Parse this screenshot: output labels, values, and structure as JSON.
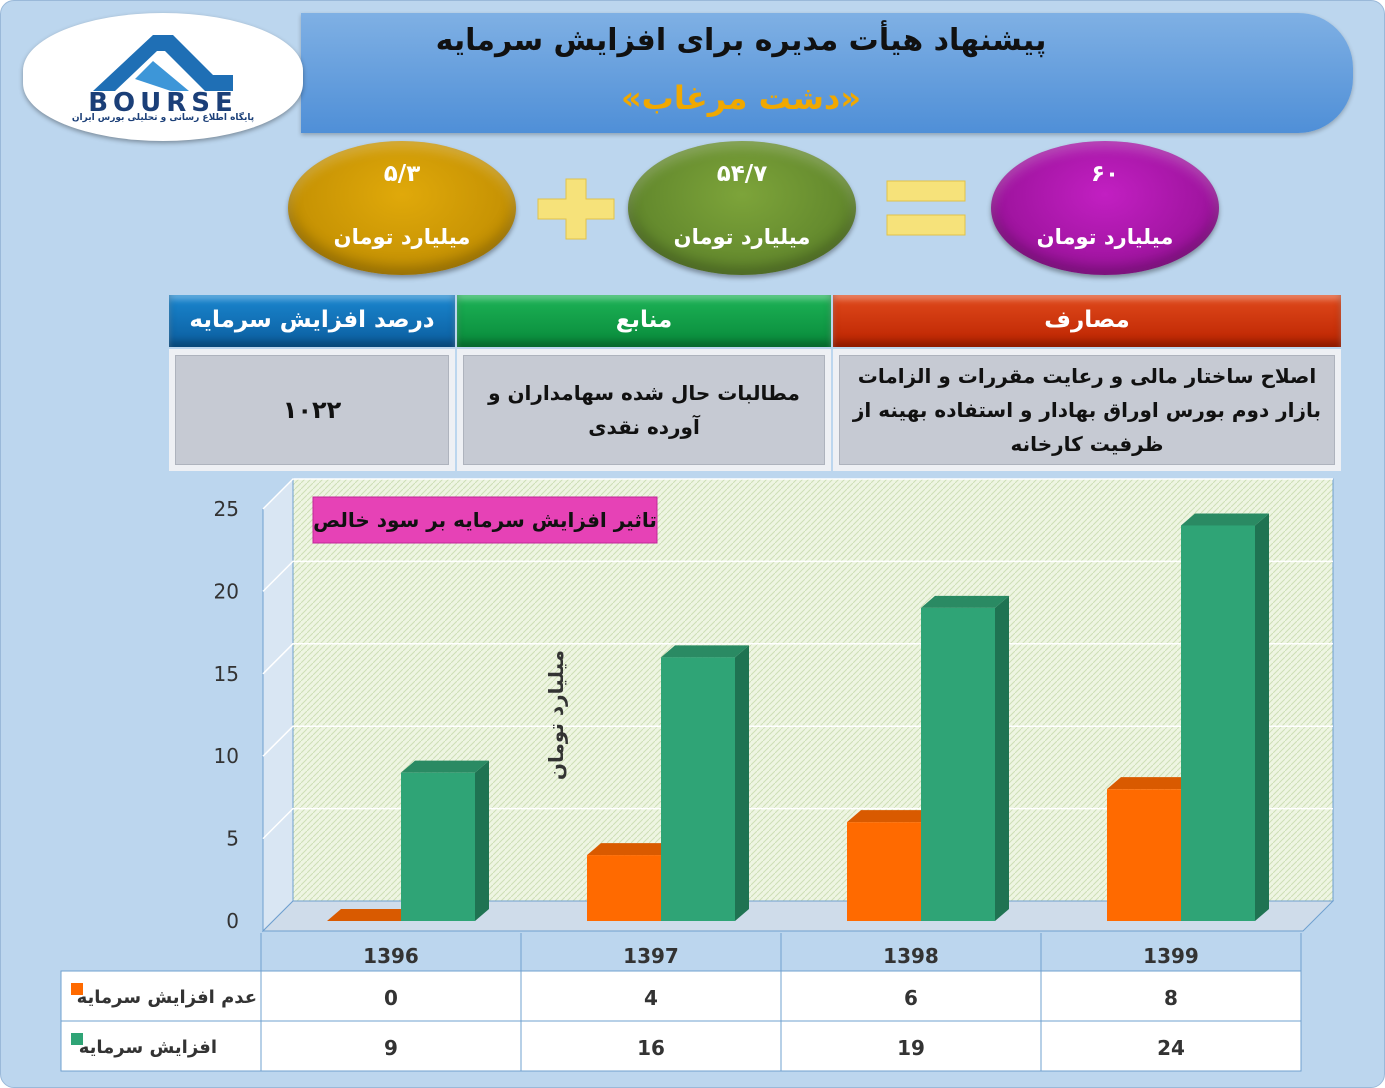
{
  "header": {
    "title": "پیشنهاد هیأت مدیره برای افزایش سرمایه",
    "subtitle": "«دشت مرغاب»",
    "logo_text": "BOURSE",
    "logo_tagline": "پایگاه اطلاع رسانی و تحلیلی بورس ایران"
  },
  "equation": {
    "total_value": "۶۰",
    "total_unit": "میلیارد تومان",
    "receivables_value": "۵۴/۷",
    "receivables_unit": "میلیارد تومان",
    "cash_value": "۵/۳",
    "cash_unit": "میلیارد تومان"
  },
  "info_table": {
    "headers": [
      "مصارف",
      "منابع",
      "درصد افزایش سرمایه"
    ],
    "uses": "اصلاح ساختار مالی و رعایت مقررات و الزامات بازار دوم بورس اوراق بهادار و استفاده بهینه از ظرفیت کارخانه",
    "sources": "مطالبات حال شده سهامداران و آورده نقدی",
    "percent": "۱۰۲۲"
  },
  "colors": {
    "uses_header": "#cc2a00",
    "sources_header": "#0e9a3f",
    "percent_header": "#0e6fb3",
    "series_no_increase": "#ff6a00",
    "series_increase": "#2fa476"
  },
  "chart_data": {
    "type": "bar",
    "title": "تاثیر افزایش سرمایه بر سود خالص",
    "ylabel": "میلیارد تومان",
    "xlabel": "",
    "ylim": [
      0,
      25
    ],
    "yticks": [
      "0",
      "5",
      "10",
      "15",
      "20",
      "25"
    ],
    "categories": [
      "1396",
      "1397",
      "1398",
      "1399"
    ],
    "series": [
      {
        "name": "عدم افزایش سرمایه",
        "values": [
          0,
          4,
          6,
          8
        ]
      },
      {
        "name": "افزایش سرمایه",
        "values": [
          9,
          16,
          19,
          24
        ]
      }
    ],
    "grid": true,
    "legend": "data-table-bottom"
  }
}
